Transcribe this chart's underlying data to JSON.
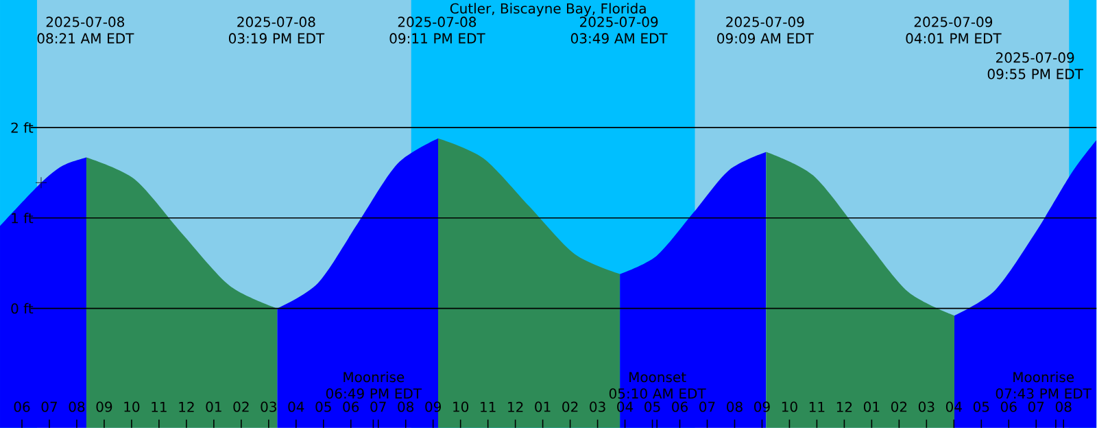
{
  "chart_data": {
    "type": "area",
    "title": "Cutler, Biscayne Bay, Florida",
    "xlim": [
      "2025-07-08T05:12",
      "2025-07-09T21:12"
    ],
    "ylim": [
      -1.32,
      3.41
    ],
    "yticks": [
      {
        "value": 0,
        "label": "0 ft"
      },
      {
        "value": 1,
        "label": "1 ft"
      },
      {
        "value": 2,
        "label": "2 ft"
      }
    ],
    "grid": "y",
    "xticks": [
      {
        "value": "2025-07-08T06:00",
        "label": "06"
      },
      {
        "value": "2025-07-08T07:00",
        "label": "07"
      },
      {
        "value": "2025-07-08T08:00",
        "label": "08"
      },
      {
        "value": "2025-07-08T09:00",
        "label": "09"
      },
      {
        "value": "2025-07-08T10:00",
        "label": "10"
      },
      {
        "value": "2025-07-08T11:00",
        "label": "11"
      },
      {
        "value": "2025-07-08T12:00",
        "label": "12"
      },
      {
        "value": "2025-07-08T13:00",
        "label": "01"
      },
      {
        "value": "2025-07-08T14:00",
        "label": "02"
      },
      {
        "value": "2025-07-08T15:00",
        "label": "03"
      },
      {
        "value": "2025-07-08T16:00",
        "label": "04"
      },
      {
        "value": "2025-07-08T17:00",
        "label": "05"
      },
      {
        "value": "2025-07-08T18:00",
        "label": "06"
      },
      {
        "value": "2025-07-08T18:49",
        "label": null
      },
      {
        "value": "2025-07-08T19:00",
        "label": "07"
      },
      {
        "value": "2025-07-08T20:00",
        "label": "08"
      },
      {
        "value": "2025-07-08T21:00",
        "label": "09"
      },
      {
        "value": "2025-07-08T22:00",
        "label": "10"
      },
      {
        "value": "2025-07-08T23:00",
        "label": "11"
      },
      {
        "value": "2025-07-09T00:00",
        "label": "12"
      },
      {
        "value": "2025-07-09T01:00",
        "label": "01"
      },
      {
        "value": "2025-07-09T02:00",
        "label": "02"
      },
      {
        "value": "2025-07-09T03:00",
        "label": "03"
      },
      {
        "value": "2025-07-09T04:00",
        "label": "04"
      },
      {
        "value": "2025-07-09T05:00",
        "label": "05"
      },
      {
        "value": "2025-07-09T05:10",
        "label": null
      },
      {
        "value": "2025-07-09T06:00",
        "label": "06"
      },
      {
        "value": "2025-07-09T07:00",
        "label": "07"
      },
      {
        "value": "2025-07-09T08:00",
        "label": "08"
      },
      {
        "value": "2025-07-09T09:00",
        "label": "09"
      },
      {
        "value": "2025-07-09T10:00",
        "label": "10"
      },
      {
        "value": "2025-07-09T11:00",
        "label": "11"
      },
      {
        "value": "2025-07-09T12:00",
        "label": "12"
      },
      {
        "value": "2025-07-09T13:00",
        "label": "01"
      },
      {
        "value": "2025-07-09T14:00",
        "label": "02"
      },
      {
        "value": "2025-07-09T15:00",
        "label": "03"
      },
      {
        "value": "2025-07-09T16:00",
        "label": "04"
      },
      {
        "value": "2025-07-09T17:00",
        "label": "05"
      },
      {
        "value": "2025-07-09T18:00",
        "label": "06"
      },
      {
        "value": "2025-07-09T19:00",
        "label": "07"
      },
      {
        "value": "2025-07-09T19:43",
        "label": null
      },
      {
        "value": "2025-07-09T20:00",
        "label": "08"
      }
    ],
    "series": [
      {
        "color": "#0000ff",
        "x": [
          "2025-07-08T05:12",
          "2025-07-08T06:42",
          "2025-07-08T07:30",
          "2025-07-08T08:21"
        ],
        "values": [
          0.91,
          1.39,
          1.58,
          1.67
        ]
      },
      {
        "color": "#2e8b57",
        "x": [
          "2025-07-08T08:21",
          "2025-07-08T10:06",
          "2025-07-08T11:50",
          "2025-07-08T13:35",
          "2025-07-08T15:19"
        ],
        "values": [
          1.67,
          1.43,
          0.83,
          0.25,
          0.0
        ]
      },
      {
        "color": "#0000ff",
        "x": [
          "2025-07-08T15:19",
          "2025-07-08T16:48",
          "2025-07-08T18:15",
          "2025-07-08T19:42",
          "2025-07-08T21:11"
        ],
        "values": [
          0.0,
          0.28,
          0.94,
          1.6,
          1.88
        ]
      },
      {
        "color": "#2e8b57",
        "x": [
          "2025-07-08T21:11",
          "2025-07-08T22:50",
          "2025-07-09T00:30",
          "2025-07-09T02:10",
          "2025-07-09T03:49"
        ],
        "values": [
          1.88,
          1.66,
          1.13,
          0.6,
          0.38
        ]
      },
      {
        "color": "#0000ff",
        "x": [
          "2025-07-09T03:49",
          "2025-07-09T05:09",
          "2025-07-09T06:30",
          "2025-07-09T07:48",
          "2025-07-09T09:09"
        ],
        "values": [
          0.38,
          0.58,
          1.06,
          1.53,
          1.73
        ]
      },
      {
        "color": "#2e8b57",
        "x": [
          "2025-07-09T09:09",
          "2025-07-09T10:52",
          "2025-07-09T12:35",
          "2025-07-09T14:18",
          "2025-07-09T16:01"
        ],
        "values": [
          1.73,
          1.47,
          0.83,
          0.19,
          -0.08
        ]
      },
      {
        "color": "#0000ff",
        "x": [
          "2025-07-09T16:01",
          "2025-07-09T17:30",
          "2025-07-09T19:00",
          "2025-07-09T20:18",
          "2025-07-09T21:12"
        ],
        "values": [
          -0.08,
          0.2,
          0.85,
          1.5,
          1.86
        ]
      },
      {
        "type": "scatter",
        "marker": "cross",
        "color": "#000000",
        "x": [
          "2025-07-08T06:42"
        ],
        "values": [
          1.39
        ]
      }
    ],
    "bands": [
      {
        "axis": "x",
        "from": "2025-07-08T05:12",
        "to": "2025-07-08T06:33",
        "color": "#00bfff"
      },
      {
        "axis": "x",
        "from": "2025-07-08T20:12",
        "to": "2025-07-09T06:33",
        "color": "#00bfff"
      },
      {
        "axis": "x",
        "from": "2025-07-09T20:12",
        "to": "2025-07-09T21:12",
        "color": "#00bfff"
      }
    ],
    "annotations": [
      "2025-07-08 08:21 AM EDT",
      "2025-07-08 03:19 PM EDT",
      "2025-07-08 09:11 PM EDT",
      "2025-07-09 03:49 AM EDT",
      "2025-07-09 09:09 AM EDT",
      "2025-07-09 04:01 PM EDT",
      "2025-07-09 09:55 PM EDT",
      "Moonrise 06:49 PM EDT",
      "Moonset 05:10 AM EDT",
      "Moonrise 07:43 PM EDT"
    ]
  }
}
